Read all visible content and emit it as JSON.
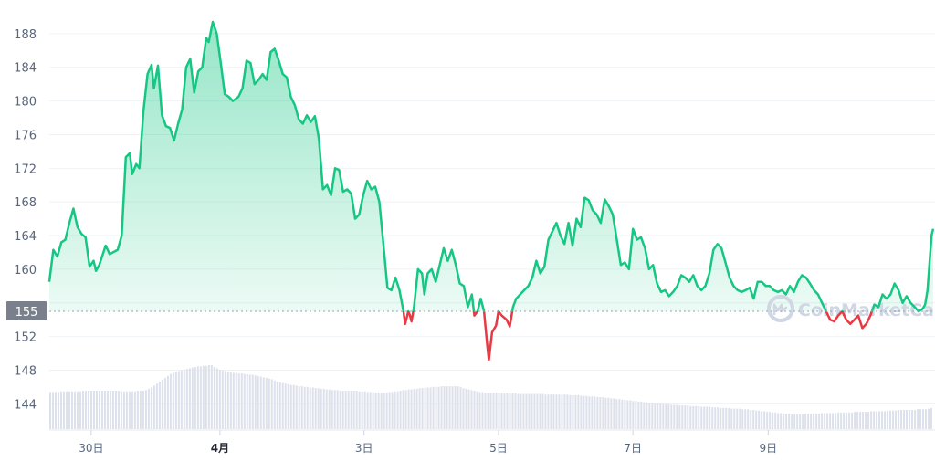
{
  "chart_data": {
    "type": "line",
    "title": "",
    "xlabel": "",
    "ylabel": "",
    "ylim": [
      141,
      192
    ],
    "xlim": [
      0,
      10.98
    ],
    "yticks": [
      144,
      148,
      152,
      156,
      160,
      164,
      168,
      172,
      176,
      180,
      184,
      188
    ],
    "ytick_labels": [
      "144",
      "148",
      "152",
      "",
      "160",
      "164",
      "168",
      "172",
      "176",
      "180",
      "184",
      "188"
    ],
    "xticks": [
      {
        "x": 0.52,
        "label": "30日",
        "bold": false
      },
      {
        "x": 2.12,
        "label": "4月",
        "bold": true
      },
      {
        "x": 3.91,
        "label": "3日",
        "bold": false
      },
      {
        "x": 5.58,
        "label": "5日",
        "bold": false
      },
      {
        "x": 7.25,
        "label": "7日",
        "bold": false
      },
      {
        "x": 8.93,
        "label": "9日",
        "bold": false
      }
    ],
    "baseline": 155,
    "baseline_label": "155",
    "grid": true,
    "colors": {
      "up": "#16c784",
      "down": "#ea3943",
      "volume": "#dde1eb",
      "grid": "#eff2f5",
      "tag_bg": "#7a7f8c"
    },
    "watermark": "CoinMarketCap",
    "series": [
      {
        "values": [
          [
            0.0,
            158.5
          ],
          [
            0.05,
            162.3
          ],
          [
            0.1,
            161.5
          ],
          [
            0.15,
            163.2
          ],
          [
            0.2,
            163.5
          ],
          [
            0.25,
            165.5
          ],
          [
            0.3,
            167.2
          ],
          [
            0.35,
            165.0
          ],
          [
            0.4,
            164.2
          ],
          [
            0.45,
            163.8
          ],
          [
            0.5,
            160.3
          ],
          [
            0.55,
            161.0
          ],
          [
            0.58,
            159.8
          ],
          [
            0.62,
            160.5
          ],
          [
            0.7,
            162.8
          ],
          [
            0.75,
            161.8
          ],
          [
            0.85,
            162.3
          ],
          [
            0.9,
            164.0
          ],
          [
            0.95,
            173.3
          ],
          [
            1.0,
            173.8
          ],
          [
            1.03,
            171.3
          ],
          [
            1.08,
            172.5
          ],
          [
            1.12,
            172.0
          ],
          [
            1.17,
            178.8
          ],
          [
            1.22,
            183.2
          ],
          [
            1.27,
            184.3
          ],
          [
            1.3,
            181.5
          ],
          [
            1.35,
            184.2
          ],
          [
            1.4,
            178.3
          ],
          [
            1.45,
            177.0
          ],
          [
            1.5,
            176.8
          ],
          [
            1.55,
            175.3
          ],
          [
            1.6,
            177.3
          ],
          [
            1.65,
            179.0
          ],
          [
            1.7,
            184.0
          ],
          [
            1.75,
            185.0
          ],
          [
            1.8,
            181.0
          ],
          [
            1.85,
            183.5
          ],
          [
            1.9,
            184.0
          ],
          [
            1.95,
            187.5
          ],
          [
            1.98,
            187.0
          ],
          [
            2.03,
            189.4
          ],
          [
            2.08,
            188.0
          ],
          [
            2.13,
            184.5
          ],
          [
            2.18,
            180.8
          ],
          [
            2.23,
            180.5
          ],
          [
            2.28,
            180.0
          ],
          [
            2.35,
            180.5
          ],
          [
            2.4,
            181.5
          ],
          [
            2.45,
            184.8
          ],
          [
            2.5,
            184.5
          ],
          [
            2.55,
            182.0
          ],
          [
            2.6,
            182.5
          ],
          [
            2.65,
            183.2
          ],
          [
            2.7,
            182.5
          ],
          [
            2.75,
            185.8
          ],
          [
            2.8,
            186.2
          ],
          [
            2.85,
            184.8
          ],
          [
            2.9,
            183.2
          ],
          [
            2.95,
            182.8
          ],
          [
            3.0,
            180.5
          ],
          [
            3.05,
            179.5
          ],
          [
            3.1,
            177.8
          ],
          [
            3.15,
            177.3
          ],
          [
            3.2,
            178.3
          ],
          [
            3.25,
            177.5
          ],
          [
            3.3,
            178.2
          ],
          [
            3.35,
            175.5
          ],
          [
            3.4,
            169.5
          ],
          [
            3.45,
            170.0
          ],
          [
            3.5,
            168.8
          ],
          [
            3.55,
            172.0
          ],
          [
            3.6,
            171.8
          ],
          [
            3.65,
            169.2
          ],
          [
            3.7,
            169.5
          ],
          [
            3.75,
            169.0
          ],
          [
            3.8,
            166.0
          ],
          [
            3.85,
            166.5
          ],
          [
            3.9,
            168.8
          ],
          [
            3.95,
            170.5
          ],
          [
            4.0,
            169.5
          ],
          [
            4.05,
            169.8
          ],
          [
            4.1,
            168.0
          ],
          [
            4.15,
            163.0
          ],
          [
            4.2,
            157.8
          ],
          [
            4.25,
            157.5
          ],
          [
            4.3,
            159.0
          ],
          [
            4.35,
            157.5
          ],
          [
            4.4,
            155.0
          ],
          [
            4.42,
            153.5
          ],
          [
            4.46,
            155.0
          ],
          [
            4.48,
            154.5
          ],
          [
            4.5,
            153.8
          ],
          [
            4.53,
            155.5
          ],
          [
            4.58,
            160.0
          ],
          [
            4.63,
            159.5
          ],
          [
            4.66,
            157.0
          ],
          [
            4.7,
            159.5
          ],
          [
            4.75,
            160.0
          ],
          [
            4.8,
            158.5
          ],
          [
            4.85,
            160.5
          ],
          [
            4.9,
            162.5
          ],
          [
            4.95,
            161.0
          ],
          [
            5.0,
            162.3
          ],
          [
            5.05,
            160.5
          ],
          [
            5.1,
            158.3
          ],
          [
            5.15,
            158.0
          ],
          [
            5.2,
            155.5
          ],
          [
            5.25,
            157.0
          ],
          [
            5.28,
            154.5
          ],
          [
            5.32,
            155.0
          ],
          [
            5.36,
            156.5
          ],
          [
            5.4,
            155.0
          ],
          [
            5.44,
            151.0
          ],
          [
            5.46,
            149.2
          ],
          [
            5.5,
            152.5
          ],
          [
            5.55,
            153.3
          ],
          [
            5.58,
            155.0
          ],
          [
            5.62,
            154.5
          ],
          [
            5.68,
            154.0
          ],
          [
            5.72,
            153.2
          ],
          [
            5.76,
            155.5
          ],
          [
            5.8,
            156.5
          ],
          [
            5.85,
            157.0
          ],
          [
            5.9,
            157.5
          ],
          [
            5.95,
            158.0
          ],
          [
            6.0,
            159.0
          ],
          [
            6.05,
            161.0
          ],
          [
            6.1,
            159.5
          ],
          [
            6.15,
            160.3
          ],
          [
            6.2,
            163.5
          ],
          [
            6.25,
            164.5
          ],
          [
            6.3,
            165.5
          ],
          [
            6.35,
            164.0
          ],
          [
            6.4,
            163.0
          ],
          [
            6.45,
            165.5
          ],
          [
            6.5,
            162.8
          ],
          [
            6.55,
            166.0
          ],
          [
            6.6,
            165.0
          ],
          [
            6.65,
            168.5
          ],
          [
            6.7,
            168.2
          ],
          [
            6.75,
            167.0
          ],
          [
            6.8,
            166.5
          ],
          [
            6.85,
            165.5
          ],
          [
            6.9,
            168.3
          ],
          [
            6.95,
            167.5
          ],
          [
            7.0,
            166.5
          ],
          [
            7.05,
            163.5
          ],
          [
            7.1,
            160.5
          ],
          [
            7.15,
            160.8
          ],
          [
            7.2,
            160.0
          ],
          [
            7.25,
            164.8
          ],
          [
            7.3,
            163.5
          ],
          [
            7.35,
            163.8
          ],
          [
            7.4,
            162.5
          ],
          [
            7.45,
            160.0
          ],
          [
            7.5,
            160.5
          ],
          [
            7.55,
            158.3
          ],
          [
            7.6,
            157.3
          ],
          [
            7.65,
            157.5
          ],
          [
            7.7,
            156.8
          ],
          [
            7.75,
            157.3
          ],
          [
            7.8,
            158.0
          ],
          [
            7.85,
            159.3
          ],
          [
            7.9,
            159.0
          ],
          [
            7.95,
            158.5
          ],
          [
            8.0,
            159.3
          ],
          [
            8.05,
            158.0
          ],
          [
            8.1,
            157.5
          ],
          [
            8.15,
            158.0
          ],
          [
            8.2,
            159.5
          ],
          [
            8.25,
            162.3
          ],
          [
            8.3,
            163.0
          ],
          [
            8.35,
            162.5
          ],
          [
            8.4,
            160.8
          ],
          [
            8.45,
            159.0
          ],
          [
            8.5,
            158.0
          ],
          [
            8.55,
            157.5
          ],
          [
            8.6,
            157.3
          ],
          [
            8.65,
            157.5
          ],
          [
            8.7,
            157.8
          ],
          [
            8.75,
            156.5
          ],
          [
            8.8,
            158.5
          ],
          [
            8.85,
            158.5
          ],
          [
            8.9,
            158.0
          ],
          [
            8.95,
            158.0
          ],
          [
            9.0,
            157.5
          ],
          [
            9.05,
            157.3
          ],
          [
            9.1,
            157.5
          ],
          [
            9.15,
            157.0
          ],
          [
            9.2,
            158.0
          ],
          [
            9.25,
            157.3
          ],
          [
            9.3,
            158.5
          ],
          [
            9.35,
            159.3
          ],
          [
            9.4,
            159.0
          ],
          [
            9.45,
            158.3
          ],
          [
            9.5,
            157.5
          ],
          [
            9.55,
            157.0
          ],
          [
            9.6,
            156.0
          ],
          [
            9.65,
            155.0
          ],
          [
            9.7,
            154.0
          ],
          [
            9.75,
            153.8
          ],
          [
            9.8,
            154.5
          ],
          [
            9.85,
            155.0
          ],
          [
            9.9,
            154.0
          ],
          [
            9.95,
            153.5
          ],
          [
            10.0,
            154.0
          ],
          [
            10.05,
            154.5
          ],
          [
            10.1,
            153.0
          ],
          [
            10.15,
            153.5
          ],
          [
            10.2,
            154.5
          ],
          [
            10.25,
            155.8
          ],
          [
            10.3,
            155.5
          ],
          [
            10.35,
            157.0
          ],
          [
            10.4,
            156.5
          ],
          [
            10.45,
            157.0
          ],
          [
            10.5,
            158.3
          ],
          [
            10.55,
            157.5
          ],
          [
            10.6,
            156.0
          ],
          [
            10.65,
            156.8
          ],
          [
            10.7,
            156.0
          ],
          [
            10.75,
            155.5
          ],
          [
            10.8,
            155.0
          ],
          [
            10.85,
            155.3
          ],
          [
            10.88,
            155.8
          ],
          [
            10.91,
            157.5
          ],
          [
            10.94,
            161.5
          ],
          [
            10.96,
            164.0
          ],
          [
            10.98,
            164.8
          ]
        ]
      }
    ],
    "volume": [
      0.58,
      0.58,
      0.58,
      0.58,
      0.59,
      0.59,
      0.59,
      0.59,
      0.59,
      0.59,
      0.59,
      0.59,
      0.6,
      0.6,
      0.6,
      0.6,
      0.6,
      0.6,
      0.6,
      0.6,
      0.6,
      0.6,
      0.6,
      0.6,
      0.6,
      0.6,
      0.59,
      0.59,
      0.59,
      0.59,
      0.59,
      0.59,
      0.6,
      0.6,
      0.6,
      0.61,
      0.63,
      0.65,
      0.68,
      0.71,
      0.74,
      0.77,
      0.8,
      0.83,
      0.86,
      0.88,
      0.9,
      0.91,
      0.92,
      0.93,
      0.94,
      0.95,
      0.96,
      0.97,
      0.98,
      0.98,
      0.99,
      0.99,
      1.0,
      1.0,
      0.97,
      0.95,
      0.93,
      0.92,
      0.91,
      0.9,
      0.89,
      0.88,
      0.88,
      0.87,
      0.87,
      0.86,
      0.86,
      0.85,
      0.85,
      0.84,
      0.83,
      0.82,
      0.81,
      0.8,
      0.79,
      0.78,
      0.76,
      0.74,
      0.73,
      0.72,
      0.71,
      0.7,
      0.69,
      0.69,
      0.68,
      0.67,
      0.67,
      0.66,
      0.66,
      0.65,
      0.65,
      0.64,
      0.64,
      0.63,
      0.63,
      0.62,
      0.62,
      0.61,
      0.61,
      0.61,
      0.6,
      0.6,
      0.6,
      0.6,
      0.6,
      0.6,
      0.6,
      0.59,
      0.59,
      0.59,
      0.58,
      0.58,
      0.58,
      0.57,
      0.57,
      0.57,
      0.57,
      0.57,
      0.58,
      0.58,
      0.59,
      0.59,
      0.6,
      0.61,
      0.61,
      0.62,
      0.62,
      0.63,
      0.63,
      0.64,
      0.64,
      0.65,
      0.65,
      0.65,
      0.66,
      0.66,
      0.66,
      0.67,
      0.67,
      0.67,
      0.67,
      0.67,
      0.67,
      0.67,
      0.66,
      0.64,
      0.63,
      0.62,
      0.61,
      0.6,
      0.59,
      0.58,
      0.58,
      0.57,
      0.57,
      0.57,
      0.57,
      0.57,
      0.57,
      0.56,
      0.56,
      0.56,
      0.56,
      0.56,
      0.56,
      0.55,
      0.55,
      0.55,
      0.55,
      0.55,
      0.55,
      0.55,
      0.55,
      0.55,
      0.55,
      0.54,
      0.54,
      0.54,
      0.54,
      0.54,
      0.54,
      0.54,
      0.54,
      0.54,
      0.53,
      0.53,
      0.53,
      0.53,
      0.52,
      0.52,
      0.52,
      0.51,
      0.51,
      0.51,
      0.5,
      0.5,
      0.5,
      0.49,
      0.49,
      0.48,
      0.48,
      0.47,
      0.47,
      0.46,
      0.46,
      0.45,
      0.45,
      0.44,
      0.44,
      0.43,
      0.43,
      0.42,
      0.42,
      0.41,
      0.41,
      0.4,
      0.4,
      0.4,
      0.39,
      0.39,
      0.39,
      0.38,
      0.38,
      0.38,
      0.37,
      0.37,
      0.37,
      0.37,
      0.36,
      0.36,
      0.36,
      0.36,
      0.35,
      0.35,
      0.35,
      0.35,
      0.34,
      0.34,
      0.34,
      0.33,
      0.33,
      0.33,
      0.33,
      0.32,
      0.32,
      0.32,
      0.32,
      0.31,
      0.31,
      0.31,
      0.3,
      0.3,
      0.29,
      0.29,
      0.28,
      0.28,
      0.27,
      0.27,
      0.26,
      0.26,
      0.25,
      0.25,
      0.24,
      0.24,
      0.24,
      0.23,
      0.23,
      0.23,
      0.23,
      0.23,
      0.24,
      0.24,
      0.24,
      0.24,
      0.24,
      0.24,
      0.25,
      0.25,
      0.25,
      0.25,
      0.25,
      0.25,
      0.26,
      0.26,
      0.26,
      0.26,
      0.26,
      0.26,
      0.27,
      0.27,
      0.27,
      0.27,
      0.27,
      0.27,
      0.28,
      0.28,
      0.28,
      0.28,
      0.28,
      0.28,
      0.29,
      0.29,
      0.29,
      0.29,
      0.3,
      0.3,
      0.3,
      0.3,
      0.3,
      0.3,
      0.3,
      0.31,
      0.31,
      0.31,
      0.31,
      0.32,
      0.33
    ]
  }
}
